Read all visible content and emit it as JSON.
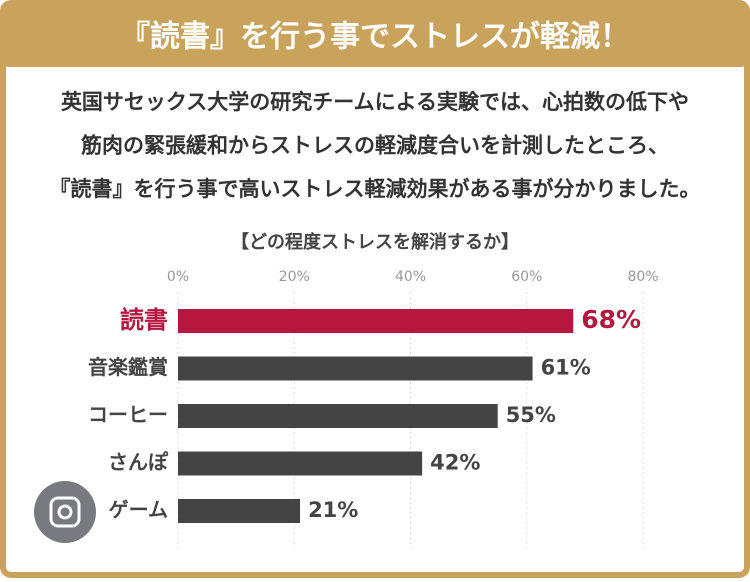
{
  "chart_data": {
    "type": "bar",
    "orientation": "horizontal",
    "title": "『読書』を行う事でストレスが軽減！",
    "description": [
      "英国サセックス大学の研究チームによる実験では、心拍数の低下や",
      "筋肉の緊張緩和からストレスの軽減度合いを計測したところ、",
      "『読書』を行う事で高いストレス軽減効果がある事が分かりました。"
    ],
    "subtitle": "【どの程度ストレスを解消するか】",
    "categories": [
      "読書",
      "音楽鑑賞",
      "コーヒー",
      "さんぽ",
      "ゲーム"
    ],
    "values": [
      68,
      61,
      55,
      42,
      21
    ],
    "value_labels": [
      "68%",
      "61%",
      "55%",
      "42%",
      "21%"
    ],
    "colors": [
      "#b5173f",
      "#444444",
      "#444444",
      "#444444",
      "#444444"
    ],
    "xlim": [
      0,
      80
    ],
    "xticks": [
      {
        "value": 0,
        "label": "0%"
      },
      {
        "value": 20,
        "label": "20%"
      },
      {
        "value": 40,
        "label": "40%"
      },
      {
        "value": 60,
        "label": "60%"
      },
      {
        "value": 80,
        "label": "80%"
      }
    ],
    "grid": true
  }
}
